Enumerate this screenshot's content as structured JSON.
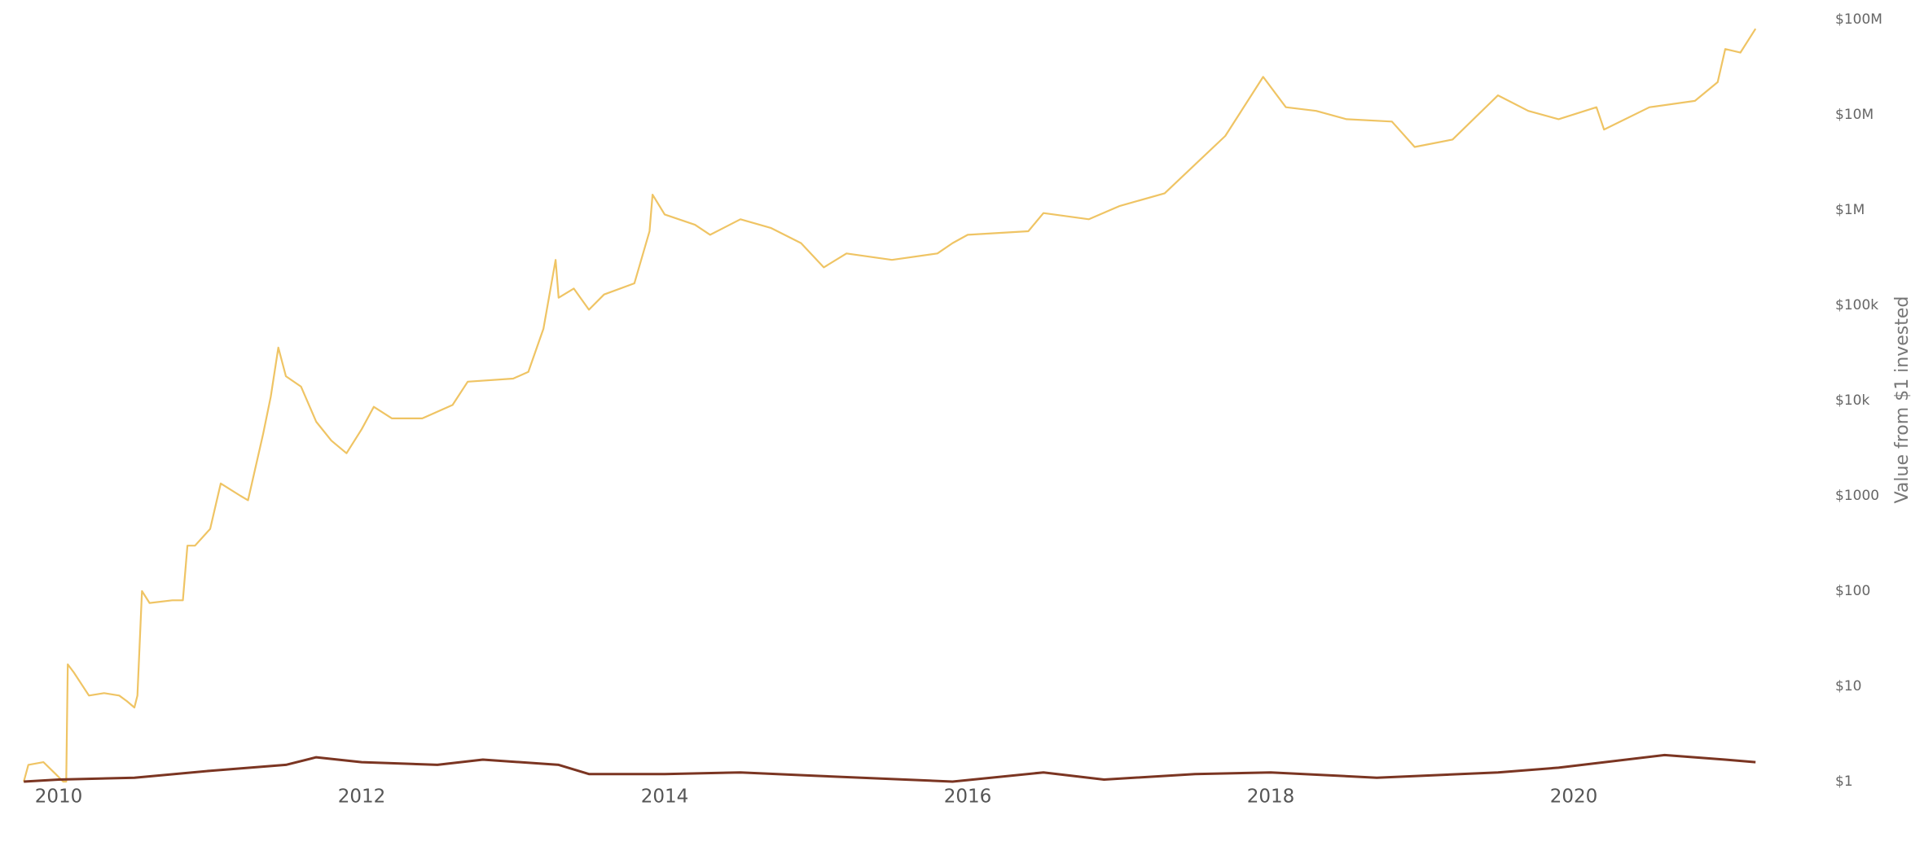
{
  "chart_data": {
    "type": "line",
    "y_axis_label": "Value from $1 invested",
    "y_scale": "log",
    "y_axis_side": "right",
    "grid": false,
    "xlim": [
      2009.75,
      2021.5
    ],
    "xticks": [
      2010,
      2012,
      2014,
      2016,
      2018,
      2020
    ],
    "ylim": [
      1,
      100000000
    ],
    "yticks": [
      {
        "value": 1,
        "label": "$1"
      },
      {
        "value": 10,
        "label": "$10"
      },
      {
        "value": 100,
        "label": "$100"
      },
      {
        "value": 1000,
        "label": "$1000"
      },
      {
        "value": 10000,
        "label": "$10k"
      },
      {
        "value": 100000,
        "label": "$100k"
      },
      {
        "value": 1000000,
        "label": "$1M"
      },
      {
        "value": 10000000,
        "label": "$10M"
      },
      {
        "value": 100000000,
        "label": "$100M"
      }
    ],
    "series": [
      {
        "color": "#efc464",
        "x": [
          2009.77,
          2009.8,
          2009.9,
          2009.98,
          2010.03,
          2010.05,
          2010.06,
          2010.1,
          2010.2,
          2010.3,
          2010.4,
          2010.45,
          2010.5,
          2010.52,
          2010.55,
          2010.6,
          2010.75,
          2010.82,
          2010.85,
          2010.9,
          2011.0,
          2011.07,
          2011.2,
          2011.25,
          2011.35,
          2011.4,
          2011.45,
          2011.5,
          2011.6,
          2011.7,
          2011.8,
          2011.9,
          2012.0,
          2012.08,
          2012.2,
          2012.4,
          2012.6,
          2012.7,
          2013.0,
          2013.1,
          2013.2,
          2013.28,
          2013.3,
          2013.4,
          2013.5,
          2013.6,
          2013.8,
          2013.9,
          2013.92,
          2014.0,
          2014.2,
          2014.3,
          2014.5,
          2014.7,
          2014.9,
          2015.05,
          2015.2,
          2015.5,
          2015.8,
          2015.9,
          2016.0,
          2016.4,
          2016.5,
          2016.8,
          2017.0,
          2017.3,
          2017.5,
          2017.7,
          2017.95,
          2018.1,
          2018.3,
          2018.5,
          2018.8,
          2018.95,
          2019.2,
          2019.5,
          2019.7,
          2019.9,
          2020.15,
          2020.2,
          2020.5,
          2020.8,
          2020.95,
          2021.0,
          2021.1,
          2021.2
        ],
        "values": [
          1,
          1.5,
          1.6,
          1.2,
          1.0,
          1.0,
          17,
          14,
          8,
          8.5,
          8,
          7,
          6,
          8,
          100,
          75,
          80,
          80,
          300,
          300,
          450,
          1350,
          1000,
          900,
          4500,
          11000,
          36000,
          18000,
          14000,
          6000,
          3800,
          2800,
          5000,
          8600,
          6500,
          6500,
          9000,
          15800,
          17000,
          20000,
          57000,
          300000,
          120000,
          150000,
          90000,
          130000,
          170000,
          600000,
          1450000,
          900000,
          700000,
          550000,
          800000,
          650000,
          450000,
          250000,
          350000,
          300000,
          350000,
          450000,
          550000,
          600000,
          930000,
          800000,
          1100000,
          1500000,
          3000000,
          6000000,
          25000000,
          12000000,
          11000000,
          9000000,
          8500000,
          4600000,
          5500000,
          16000000,
          11000000,
          9000000,
          12000000,
          7000000,
          12000000,
          14000000,
          22000000,
          49000000,
          45000000,
          80000000
        ]
      },
      {
        "color": "#7b3522",
        "x": [
          2009.77,
          2010.0,
          2010.5,
          2011.0,
          2011.5,
          2011.7,
          2012.0,
          2012.5,
          2012.8,
          2013.3,
          2013.5,
          2014.0,
          2014.5,
          2015.0,
          2015.9,
          2016.5,
          2016.9,
          2017.5,
          2018.0,
          2018.7,
          2019.5,
          2019.9,
          2020.6,
          2021.0,
          2021.2
        ],
        "values": [
          1.0,
          1.05,
          1.1,
          1.3,
          1.5,
          1.8,
          1.6,
          1.5,
          1.7,
          1.5,
          1.2,
          1.2,
          1.25,
          1.15,
          1.0,
          1.25,
          1.05,
          1.2,
          1.25,
          1.1,
          1.25,
          1.4,
          1.9,
          1.7,
          1.6
        ]
      }
    ]
  }
}
